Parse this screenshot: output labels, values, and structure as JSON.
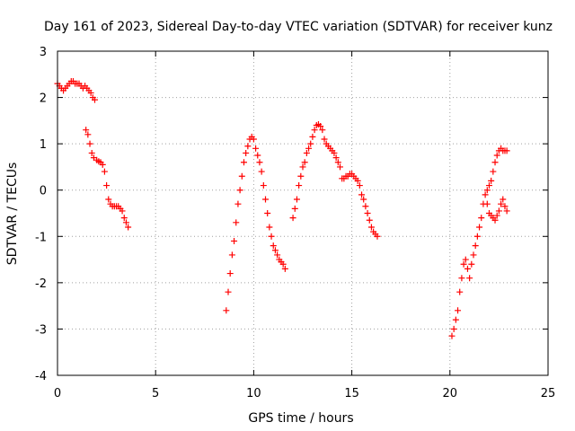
{
  "chart_data": {
    "type": "scatter",
    "title": "Day 161 of 2023, Sidereal Day-to-day VTEC variation (SDTVAR) for receiver kunz",
    "xlabel": "GPS time / hours",
    "ylabel": "SDTVAR / TECUs",
    "xlim": [
      0,
      25
    ],
    "ylim": [
      -4,
      3
    ],
    "xticks": [
      0,
      5,
      10,
      15,
      20,
      25
    ],
    "yticks": [
      -4,
      -3,
      -2,
      -1,
      0,
      1,
      2,
      3
    ],
    "grid": true,
    "legend": "none",
    "marker": "+",
    "color": "#ff0000",
    "series": [
      {
        "x": [
          0.0,
          0.1,
          0.2,
          0.3,
          0.4,
          0.5,
          0.6,
          0.7,
          0.8,
          0.9,
          1.0,
          1.1,
          1.2,
          1.3,
          1.4,
          1.5,
          1.6,
          1.7,
          1.8,
          1.9,
          1.45,
          1.55,
          1.65,
          1.75,
          1.85,
          2.0,
          2.1,
          2.2,
          2.3,
          2.4,
          2.5,
          2.6,
          2.7,
          2.8,
          2.9,
          3.0,
          3.1,
          3.2,
          3.3,
          3.4,
          3.5,
          3.6
        ],
        "y": [
          2.3,
          2.25,
          2.2,
          2.15,
          2.2,
          2.25,
          2.3,
          2.35,
          2.35,
          2.3,
          2.3,
          2.3,
          2.25,
          2.2,
          2.25,
          2.2,
          2.15,
          2.1,
          2.0,
          1.95,
          1.3,
          1.2,
          1.0,
          0.8,
          0.7,
          0.65,
          0.62,
          0.6,
          0.55,
          0.4,
          0.1,
          -0.2,
          -0.3,
          -0.35,
          -0.35,
          -0.35,
          -0.35,
          -0.4,
          -0.45,
          -0.6,
          -0.7,
          -0.8
        ]
      },
      {
        "x": [
          8.6,
          8.7,
          8.8,
          8.9,
          9.0,
          9.1,
          9.2,
          9.3,
          9.4,
          9.5,
          9.6,
          9.7,
          9.8,
          9.9,
          10.0,
          10.1,
          10.2,
          10.3,
          10.4,
          10.5,
          10.6,
          10.7,
          10.8,
          10.9,
          11.0,
          11.1,
          11.2,
          11.3,
          11.4,
          11.5,
          11.6
        ],
        "y": [
          -2.6,
          -2.2,
          -1.8,
          -1.4,
          -1.1,
          -0.7,
          -0.3,
          0.0,
          0.3,
          0.6,
          0.8,
          0.95,
          1.1,
          1.15,
          1.1,
          0.9,
          0.75,
          0.6,
          0.4,
          0.1,
          -0.2,
          -0.5,
          -0.8,
          -1.0,
          -1.2,
          -1.3,
          -1.4,
          -1.5,
          -1.55,
          -1.6,
          -1.7
        ]
      },
      {
        "x": [
          12.0,
          12.1,
          12.2,
          12.3,
          12.4,
          12.5,
          12.6,
          12.7,
          12.8,
          12.9,
          13.0,
          13.1,
          13.2,
          13.3,
          13.4,
          13.5,
          13.6,
          13.7,
          13.8,
          13.9,
          14.0,
          14.1,
          14.2,
          14.3,
          14.4,
          14.5,
          14.6,
          14.7,
          14.8,
          14.9,
          15.0,
          15.1,
          15.2,
          15.3,
          15.4,
          15.5,
          15.6,
          15.7,
          15.8,
          15.9,
          16.0,
          16.1,
          16.2,
          16.3
        ],
        "y": [
          -0.6,
          -0.4,
          -0.2,
          0.1,
          0.3,
          0.5,
          0.6,
          0.8,
          0.9,
          1.0,
          1.15,
          1.3,
          1.4,
          1.42,
          1.38,
          1.3,
          1.1,
          1.0,
          0.95,
          0.9,
          0.85,
          0.8,
          0.7,
          0.6,
          0.5,
          0.25,
          0.25,
          0.3,
          0.3,
          0.35,
          0.35,
          0.3,
          0.25,
          0.2,
          0.1,
          -0.1,
          -0.2,
          -0.35,
          -0.5,
          -0.65,
          -0.8,
          -0.9,
          -0.95,
          -1.0
        ]
      },
      {
        "x": [
          20.1,
          20.2,
          20.3,
          20.4,
          20.5,
          20.6,
          20.7,
          20.8,
          20.9,
          21.0,
          21.1,
          21.2,
          21.3,
          21.4,
          21.5,
          21.6,
          21.7,
          21.8,
          21.9,
          22.0,
          22.1,
          22.2,
          22.3,
          22.4,
          22.5,
          22.6,
          22.7,
          22.8,
          22.9,
          21.9,
          22.0,
          22.1,
          22.2,
          22.3,
          22.4,
          22.5,
          22.6,
          22.7,
          22.8,
          22.9
        ],
        "y": [
          -3.15,
          -3.0,
          -2.8,
          -2.6,
          -2.2,
          -1.9,
          -1.6,
          -1.5,
          -1.7,
          -1.9,
          -1.6,
          -1.4,
          -1.2,
          -1.0,
          -0.8,
          -0.6,
          -0.3,
          -0.1,
          0.0,
          0.1,
          0.2,
          0.4,
          0.6,
          0.75,
          0.85,
          0.9,
          0.85,
          0.85,
          0.85,
          -0.3,
          -0.5,
          -0.55,
          -0.6,
          -0.65,
          -0.55,
          -0.45,
          -0.3,
          -0.2,
          -0.35,
          -0.45
        ]
      }
    ]
  }
}
